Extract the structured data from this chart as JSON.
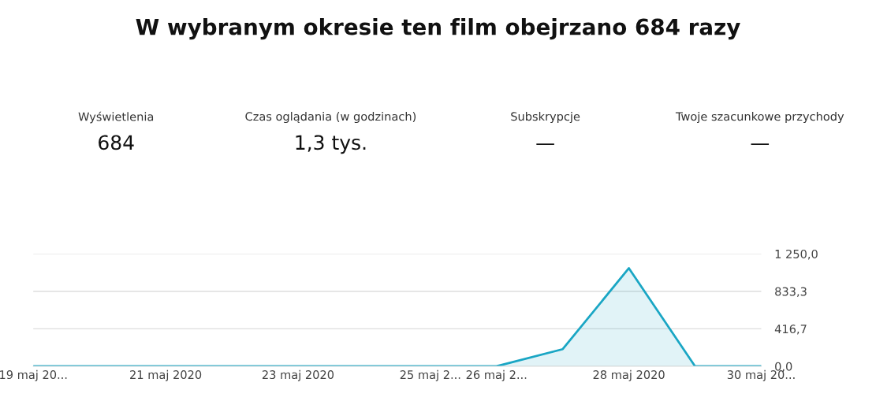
{
  "chart_data": {
    "type": "area",
    "title": "W wybranym okresie ten film obejrzano 684 razy",
    "annotations": [
      "Wyświetlenia",
      "684",
      "Czas oglądania (w godzinach)",
      "1,3 tys.",
      "Subskrypcje",
      "—",
      "Twoje szacunkowe przychody",
      "—"
    ],
    "x": [
      "2020-05-19",
      "2020-05-20",
      "2020-05-21",
      "2020-05-22",
      "2020-05-23",
      "2020-05-24",
      "2020-05-25",
      "2020-05-26",
      "2020-05-27",
      "2020-05-28",
      "2020-05-29",
      "2020-05-30"
    ],
    "series": [
      {
        "color": "#1aa6c4",
        "values": [
          0,
          0,
          0,
          0,
          0,
          0,
          0,
          0,
          190,
          1090,
          0,
          0
        ]
      }
    ],
    "xlim": [
      "2020-05-19",
      "2020-05-30"
    ],
    "ylim": [
      0,
      1250
    ],
    "xticks": [
      {
        "value": "2020-05-19",
        "label": "19 maj 20..."
      },
      {
        "value": "2020-05-21",
        "label": "21 maj 2020"
      },
      {
        "value": "2020-05-23",
        "label": "23 maj 2020"
      },
      {
        "value": "2020-05-25",
        "label": "25 maj 2..."
      },
      {
        "value": "2020-05-26",
        "label": "26 maj 2..."
      },
      {
        "value": "2020-05-28",
        "label": "28 maj 2020"
      },
      {
        "value": "2020-05-30",
        "label": "30 maj 20..."
      }
    ],
    "yticks": [
      {
        "value": 0,
        "label": "0,0"
      },
      {
        "value": 416.7,
        "label": "416,7"
      },
      {
        "value": 833.3,
        "label": "833,3"
      },
      {
        "value": 1250,
        "label": "1 250,0"
      }
    ],
    "grid": "y"
  }
}
